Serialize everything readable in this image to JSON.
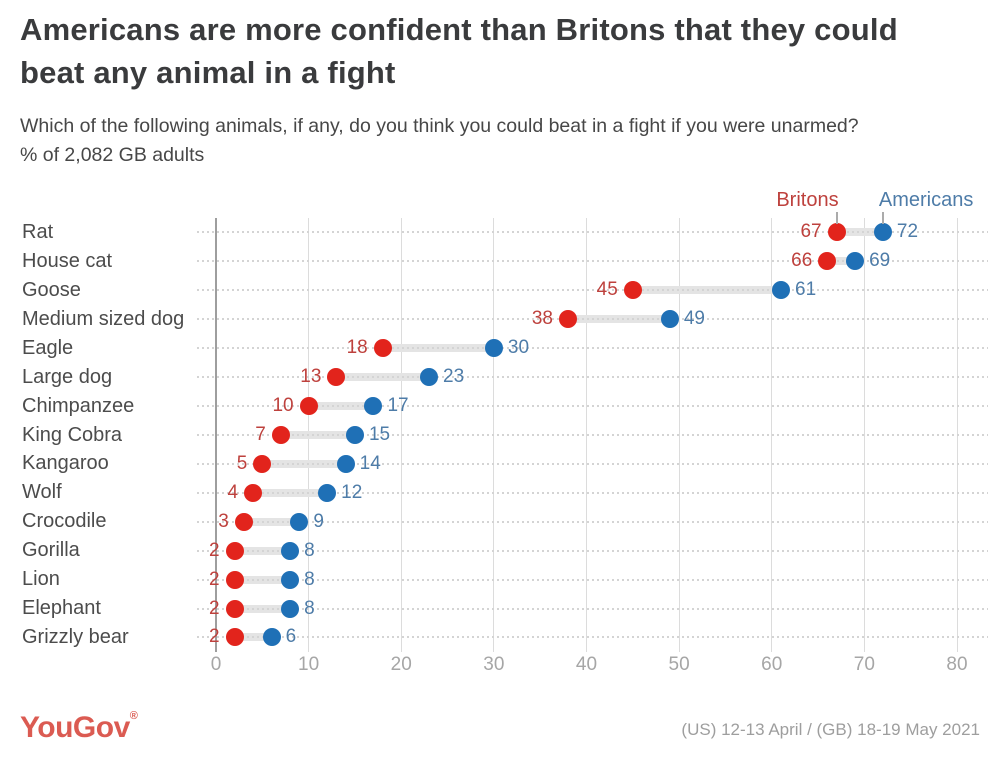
{
  "header": {
    "title": "Americans are more confident than Britons that they could beat any animal in a fight",
    "subtitle": "Which of the following animals, if any, do you think you could beat in a fight if you were unarmed?",
    "sample_note": "% of 2,082 GB adults"
  },
  "legend": {
    "britons_label": "Britons",
    "americans_label": "Americans"
  },
  "chart_data": {
    "type": "scatter",
    "subtype": "dumbbell-dot-plot",
    "title": "Americans are more confident than Britons that they could beat any animal in a fight",
    "categories": [
      "Rat",
      "House cat",
      "Goose",
      "Medium sized dog",
      "Eagle",
      "Large dog",
      "Chimpanzee",
      "King Cobra",
      "Kangaroo",
      "Wolf",
      "Crocodile",
      "Gorilla",
      "Lion",
      "Elephant",
      "Grizzly bear"
    ],
    "series": [
      {
        "name": "Britons",
        "values": [
          67,
          66,
          45,
          38,
          18,
          13,
          10,
          7,
          5,
          4,
          3,
          2,
          2,
          2,
          2
        ]
      },
      {
        "name": "Americans",
        "values": [
          72,
          69,
          61,
          49,
          30,
          23,
          17,
          15,
          14,
          12,
          9,
          8,
          8,
          8,
          6
        ]
      }
    ],
    "xlabel": "",
    "ylabel": "",
    "x_ticks": [
      0,
      10,
      20,
      30,
      40,
      50,
      60,
      70,
      80
    ],
    "xlim": [
      0,
      80
    ],
    "grid": "vertical solid lines at ticks, horizontal dotted lines per category",
    "legend_position": "top-right above first row"
  },
  "colors": {
    "briton_dot": "#e2241c",
    "briton_text": "#be413d",
    "american_dot": "#1f70b6",
    "american_text": "#4e7ca8",
    "connector_bar": "#e4e4e4",
    "logo": "#db5b52"
  },
  "footer": {
    "logo_text": "YouGov",
    "registered_mark": "®",
    "dates": "(US) 12-13 April / (GB) 18-19 May 2021"
  }
}
